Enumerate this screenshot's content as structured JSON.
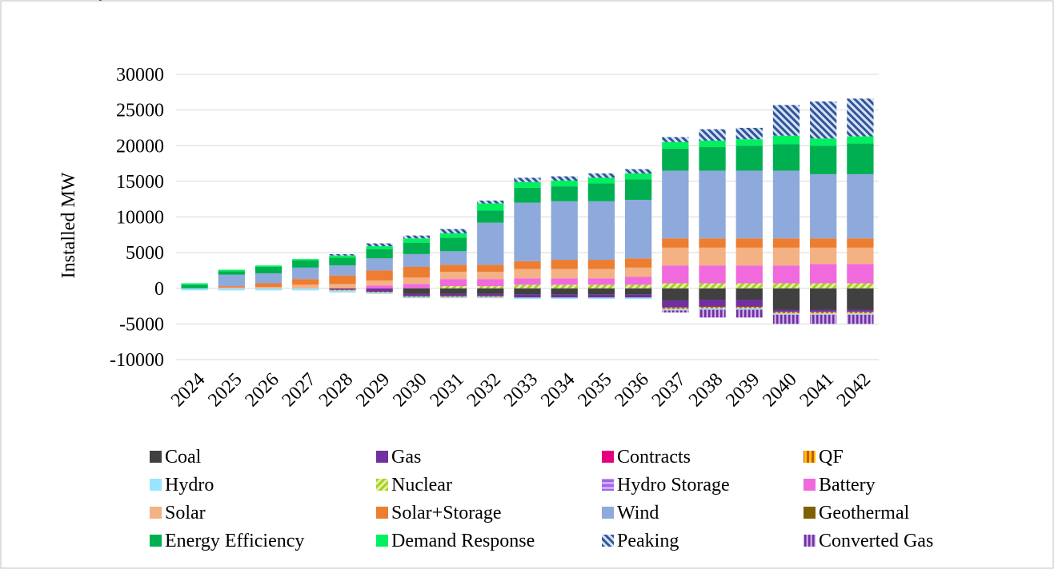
{
  "page": {
    "title_fragment": "apacity"
  },
  "chart_data": {
    "type": "bar",
    "stacked": true,
    "title": "",
    "xlabel": "",
    "ylabel": "Installed MW",
    "ylim": [
      -10000,
      30000
    ],
    "yticks": [
      -10000,
      -5000,
      0,
      5000,
      10000,
      15000,
      20000,
      25000,
      30000
    ],
    "grid": true,
    "legend_position": "bottom",
    "categories": [
      "2024",
      "2025",
      "2026",
      "2027",
      "2028",
      "2029",
      "2030",
      "2031",
      "2032",
      "2033",
      "2034",
      "2035",
      "2036",
      "2037",
      "2038",
      "2039",
      "2040",
      "2041",
      "2042"
    ],
    "series": [
      {
        "name": "Coal",
        "color": "#404040",
        "pattern": "solid",
        "values": [
          0,
          0,
          0,
          0,
          0,
          0,
          -800,
          -800,
          -800,
          -900,
          -900,
          -900,
          -900,
          -1700,
          -1600,
          -1600,
          -3000,
          -3000,
          -3000
        ]
      },
      {
        "name": "Gas",
        "color": "#7030A0",
        "pattern": "solid",
        "values": [
          0,
          0,
          0,
          0,
          -200,
          -500,
          -300,
          -300,
          -300,
          -400,
          -400,
          -400,
          -400,
          -1000,
          -1000,
          -1000,
          -300,
          -300,
          -300
        ]
      },
      {
        "name": "Contracts",
        "color": "#E6007E",
        "pattern": "solid",
        "values": [
          0,
          0,
          0,
          0,
          0,
          0,
          0,
          0,
          0,
          0,
          0,
          0,
          0,
          0,
          0,
          0,
          0,
          0,
          0
        ]
      },
      {
        "name": "QF",
        "color": "#F5A623",
        "pattern": "vstripe",
        "values": [
          0,
          0,
          0,
          0,
          -100,
          -100,
          -100,
          -100,
          -100,
          0,
          0,
          0,
          0,
          -200,
          -200,
          -200,
          -200,
          -200,
          -200
        ]
      },
      {
        "name": "Hydro",
        "color": "#99E5FF",
        "pattern": "solid",
        "values": [
          -300,
          -300,
          -300,
          -300,
          -300,
          -200,
          -200,
          -200,
          -200,
          -200,
          -200,
          -200,
          -200,
          -200,
          -200,
          -200,
          -200,
          -200,
          -200
        ]
      },
      {
        "name": "Nuclear",
        "color": "#C5E04A",
        "pattern": "diag",
        "values": [
          0,
          0,
          0,
          0,
          0,
          0,
          0,
          300,
          300,
          500,
          500,
          500,
          500,
          700,
          700,
          700,
          700,
          700,
          700
        ]
      },
      {
        "name": "Hydro Storage",
        "color": "#9966FF",
        "pattern": "hstripe",
        "values": [
          0,
          0,
          0,
          0,
          0,
          0,
          0,
          0,
          0,
          0,
          0,
          0,
          0,
          0,
          0,
          0,
          0,
          0,
          0
        ]
      },
      {
        "name": "Battery",
        "color": "#F06ADD",
        "pattern": "solid",
        "values": [
          0,
          0,
          0,
          0,
          0,
          400,
          600,
          1000,
          1000,
          900,
          900,
          900,
          1100,
          2500,
          2500,
          2500,
          2500,
          2700,
          2700
        ]
      },
      {
        "name": "Solar",
        "color": "#F4B183",
        "pattern": "solid",
        "values": [
          0,
          100,
          200,
          500,
          600,
          700,
          900,
          1000,
          1000,
          1300,
          1300,
          1300,
          1300,
          2500,
          2500,
          2500,
          2500,
          2300,
          2300
        ]
      },
      {
        "name": "Solar+Storage",
        "color": "#ED7D31",
        "pattern": "solid",
        "values": [
          0,
          200,
          500,
          800,
          1200,
          1400,
          1500,
          1000,
          1000,
          1100,
          1300,
          1300,
          1300,
          1300,
          1300,
          1300,
          1300,
          1300,
          1300
        ]
      },
      {
        "name": "Wind",
        "color": "#8EA9DB",
        "pattern": "solid",
        "values": [
          0,
          1600,
          1400,
          1600,
          1400,
          1700,
          1800,
          1900,
          5900,
          8200,
          8200,
          8200,
          8200,
          9500,
          9500,
          9500,
          9500,
          9000,
          9000
        ]
      },
      {
        "name": "Geothermal",
        "color": "#7F6000",
        "pattern": "solid",
        "values": [
          0,
          0,
          0,
          0,
          0,
          0,
          0,
          0,
          0,
          0,
          0,
          0,
          0,
          0,
          0,
          0,
          0,
          0,
          0
        ]
      },
      {
        "name": "Energy Efficiency",
        "color": "#00B050",
        "pattern": "solid",
        "values": [
          500,
          500,
          900,
          1000,
          1100,
          1300,
          1600,
          1900,
          1700,
          2100,
          2100,
          2500,
          2900,
          3100,
          3300,
          3500,
          3700,
          4000,
          4300
        ]
      },
      {
        "name": "Demand Response",
        "color": "#00F060",
        "pattern": "solid",
        "values": [
          200,
          200,
          200,
          200,
          300,
          400,
          600,
          600,
          1000,
          800,
          800,
          800,
          800,
          900,
          900,
          900,
          1200,
          1000,
          1000
        ]
      },
      {
        "name": "Peaking",
        "color": "#4472C4",
        "pattern": "crosshatch",
        "values": [
          0,
          0,
          0,
          0,
          200,
          400,
          400,
          600,
          400,
          600,
          600,
          600,
          600,
          700,
          1600,
          1600,
          4300,
          5200,
          5300
        ]
      },
      {
        "name": "Converted Gas",
        "color": "#7030A0",
        "pattern": "vstripe-purple",
        "values": [
          0,
          0,
          0,
          0,
          0,
          0,
          0,
          0,
          0,
          0,
          0,
          0,
          0,
          -300,
          -1100,
          -1100,
          -1300,
          -1300,
          -1300
        ]
      }
    ]
  }
}
